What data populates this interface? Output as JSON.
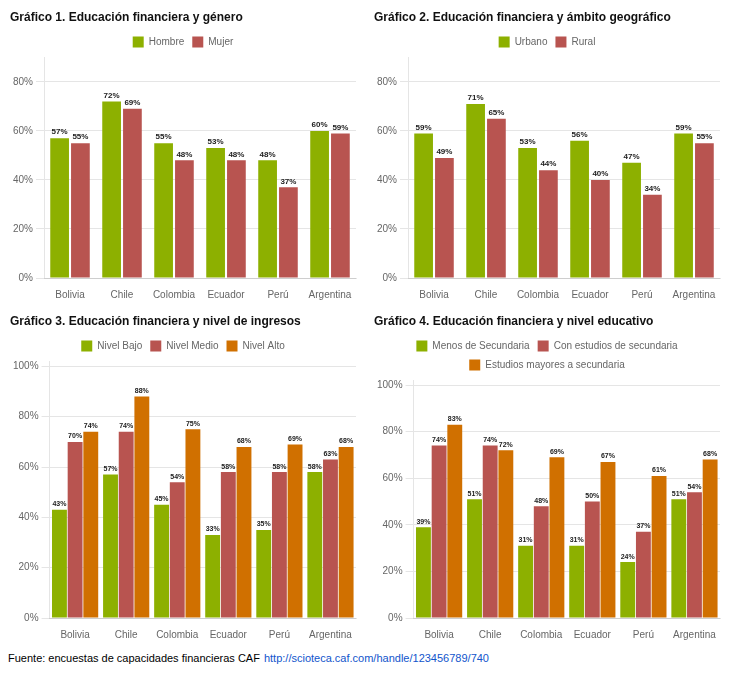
{
  "chart_data": [
    {
      "type": "bar",
      "title": "Gráfico 1. Educación financiera y género",
      "categories": [
        "Bolivia",
        "Chile",
        "Colombia",
        "Ecuador",
        "Perú",
        "Argentina"
      ],
      "series": [
        {
          "name": "Hombre",
          "color": "#8DB000",
          "values": [
            57,
            72,
            55,
            53,
            48,
            60
          ],
          "value_labels": [
            "57%",
            "72%",
            "55%",
            "53%",
            "48%",
            "60%"
          ]
        },
        {
          "name": "Mujer",
          "color": "#B85450",
          "values": [
            55,
            69,
            48,
            48,
            37,
            59
          ],
          "value_labels": [
            "55%",
            "69%",
            "48%",
            "48%",
            "37%",
            "59%"
          ]
        }
      ],
      "ylim": [
        0,
        90
      ],
      "yticks": [
        {
          "value": 0,
          "label": "0%"
        },
        {
          "value": 20,
          "label": "20%"
        },
        {
          "value": 40,
          "label": "40%"
        },
        {
          "value": 60,
          "label": "60%"
        },
        {
          "value": 80,
          "label": "80%"
        }
      ],
      "grid": true,
      "legend": "upper center",
      "data_labels": true
    },
    {
      "type": "bar",
      "title": "Gráfico 2. Educación financiera y ámbito geográfico",
      "categories": [
        "Bolivia",
        "Chile",
        "Colombia",
        "Ecuador",
        "Perú",
        "Argentina"
      ],
      "series": [
        {
          "name": "Urbano",
          "color": "#8DB000",
          "values": [
            59,
            71,
            53,
            56,
            47,
            59
          ],
          "value_labels": [
            "59%",
            "71%",
            "53%",
            "56%",
            "47%",
            "59%"
          ]
        },
        {
          "name": "Rural",
          "color": "#B85450",
          "values": [
            49,
            65,
            44,
            40,
            34,
            55
          ],
          "value_labels": [
            "49%",
            "65%",
            "44%",
            "40%",
            "34%",
            "55%"
          ]
        }
      ],
      "ylim": [
        0,
        90
      ],
      "yticks": [
        {
          "value": 0,
          "label": "0%"
        },
        {
          "value": 20,
          "label": "20%"
        },
        {
          "value": 40,
          "label": "40%"
        },
        {
          "value": 60,
          "label": "60%"
        },
        {
          "value": 80,
          "label": "80%"
        }
      ],
      "grid": true,
      "legend": "upper center",
      "data_labels": true
    },
    {
      "type": "bar",
      "title": "Gráfico 3. Educación financiera y nivel de ingresos",
      "categories": [
        "Bolivia",
        "Chile",
        "Colombia",
        "Ecuador",
        "Perú",
        "Argentina"
      ],
      "series": [
        {
          "name": "Nivel Bajo",
          "color": "#8DB000",
          "values": [
            43,
            57,
            45,
            33,
            35,
            58
          ],
          "value_labels": [
            "43%",
            "57%",
            "45%",
            "33%",
            "35%",
            "58%"
          ]
        },
        {
          "name": "Nivel Medio",
          "color": "#B85450",
          "values": [
            70,
            74,
            54,
            58,
            58,
            63
          ],
          "value_labels": [
            "70%",
            "74%",
            "54%",
            "58%",
            "58%",
            "63%"
          ]
        },
        {
          "name": "Nivel Alto",
          "color": "#D07000",
          "values": [
            74,
            88,
            75,
            68,
            69,
            68
          ],
          "value_labels": [
            "74%",
            "88%",
            "75%",
            "68%",
            "69%",
            "68%"
          ]
        }
      ],
      "ylim": [
        0,
        102
      ],
      "yticks": [
        {
          "value": 0,
          "label": "0%"
        },
        {
          "value": 20,
          "label": "20%"
        },
        {
          "value": 40,
          "label": "40%"
        },
        {
          "value": 60,
          "label": "60%"
        },
        {
          "value": 80,
          "label": "80%"
        },
        {
          "value": 100,
          "label": "100%"
        }
      ],
      "grid": true,
      "legend": "upper center",
      "data_labels": true
    },
    {
      "type": "bar",
      "title": "Gráfico 4. Educación financiera y nivel educativo",
      "categories": [
        "Bolivia",
        "Chile",
        "Colombia",
        "Ecuador",
        "Perú",
        "Argentina"
      ],
      "series": [
        {
          "name": "Menos de Secundaria",
          "color": "#8DB000",
          "values": [
            39,
            51,
            31,
            31,
            24,
            51
          ],
          "value_labels": [
            "39%",
            "51%",
            "31%",
            "31%",
            "24%",
            "51%"
          ]
        },
        {
          "name": "Con estudios de secundaria",
          "color": "#B85450",
          "values": [
            74,
            74,
            48,
            50,
            37,
            54
          ],
          "value_labels": [
            "74%",
            "74%",
            "48%",
            "50%",
            "37%",
            "54%"
          ]
        },
        {
          "name": "Estudios mayores a secundaria",
          "color": "#D07000",
          "values": [
            83,
            72,
            69,
            67,
            61,
            68
          ],
          "value_labels": [
            "83%",
            "72%",
            "69%",
            "67%",
            "61%",
            "68%"
          ]
        }
      ],
      "ylim": [
        0,
        102
      ],
      "yticks": [
        {
          "value": 0,
          "label": "0%"
        },
        {
          "value": 20,
          "label": "20%"
        },
        {
          "value": 40,
          "label": "40%"
        },
        {
          "value": 60,
          "label": "60%"
        },
        {
          "value": 80,
          "label": "80%"
        },
        {
          "value": 100,
          "label": "100%"
        }
      ],
      "grid": true,
      "legend": "upper center",
      "data_labels": true
    }
  ],
  "annotations": [
    "Fuente: encuestas de capacidades financieras CAF",
    "http://scioteca.caf.com/handle/123456789/740"
  ]
}
